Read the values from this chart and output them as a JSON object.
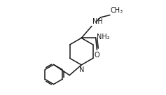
{
  "bg_color": "#ffffff",
  "line_color": "#1a1a1a",
  "line_width": 1.1,
  "font_size": 7.0,
  "fig_width": 2.37,
  "fig_height": 1.36,
  "dpi": 100,
  "xlim": [
    0,
    10
  ],
  "ylim": [
    0,
    6
  ]
}
